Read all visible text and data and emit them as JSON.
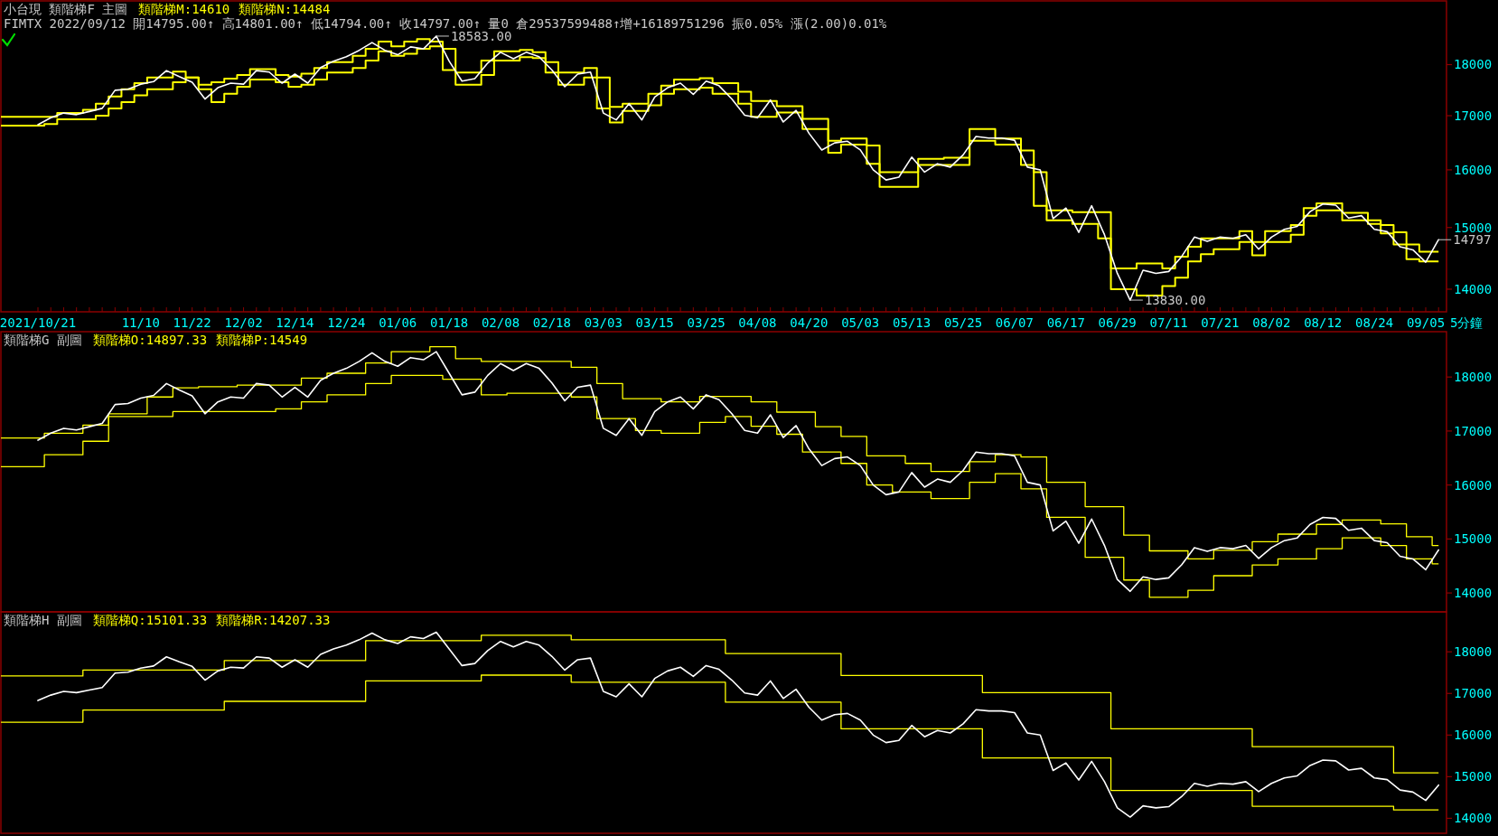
{
  "chart_data": [
    {
      "type": "line",
      "title": "小台現 類階梯F 主圖",
      "subtitle": "FIMTX 2022/09/12 開14795.00↑ 高14801.00↑ 低14794.00↑ 收14797.00↑ 量0 倉29537599488↑增+16189751296 振0.05% 漲(2.00)0.01%",
      "xlabel": "5分鐘",
      "log": true,
      "categories": [
        "2021/10/21",
        null,
        null,
        null,
        null,
        null,
        null,
        null,
        "11/10",
        null,
        null,
        null,
        "11/22",
        null,
        null,
        null,
        "12/02",
        null,
        null,
        null,
        "12/14",
        null,
        null,
        null,
        "12/24",
        null,
        null,
        null,
        "01/06",
        null,
        null,
        null,
        "01/18",
        null,
        null,
        null,
        "02/08",
        null,
        null,
        null,
        "02/18",
        null,
        null,
        null,
        "03/03",
        null,
        null,
        null,
        "03/15",
        null,
        null,
        null,
        "03/25",
        null,
        null,
        null,
        "04/08",
        null,
        null,
        null,
        "04/20",
        null,
        null,
        null,
        "05/03",
        null,
        null,
        null,
        "05/13",
        null,
        null,
        null,
        "05/25",
        null,
        null,
        null,
        "06/07",
        null,
        null,
        null,
        "06/17",
        null,
        null,
        null,
        "06/29",
        null,
        null,
        null,
        "07/11",
        null,
        null,
        null,
        "07/21",
        null,
        null,
        null,
        "08/02",
        null,
        null,
        null,
        "08/12",
        null,
        null,
        null,
        "08/24",
        null,
        null,
        null,
        "09/05",
        null
      ],
      "ylim": [
        13650,
        19330
      ],
      "yticks": [
        14000,
        15000,
        16000,
        17000,
        18000
      ],
      "series": [
        {
          "type": "step",
          "color": "#ffff00",
          "values": [
            16980,
            16980,
            17050,
            17050,
            17110,
            17230,
            17370,
            17510,
            17630,
            17740,
            17740,
            17860,
            17740,
            17600,
            17650,
            17720,
            17790,
            17910,
            17910,
            17790,
            17760,
            17820,
            17930,
            18050,
            18050,
            18180,
            18320,
            18470,
            18370,
            18470,
            18520,
            18470,
            18320,
            17840,
            17840,
            18080,
            18270,
            18270,
            18300,
            18250,
            18050,
            17840,
            17840,
            17930,
            17740,
            17170,
            17230,
            17230,
            17420,
            17580,
            17700,
            17700,
            17730,
            17630,
            17630,
            17460,
            17280,
            17280,
            17180,
            17180,
            16940,
            16940,
            16530,
            16570,
            16570,
            16440,
            15960,
            15960,
            15960,
            16200,
            16200,
            16220,
            16220,
            16750,
            16750,
            16570,
            16570,
            16350,
            15960,
            15290,
            15290,
            15260,
            15260,
            15260,
            14330,
            14330,
            14410,
            14410,
            14330,
            14520,
            14680,
            14820,
            14820,
            14820,
            14940,
            14760,
            14940,
            14940,
            15040,
            15330,
            15410,
            15410,
            15250,
            15250,
            15120,
            15040,
            14920,
            14720,
            14600,
            14600
          ]
        },
        {
          "type": "step",
          "color": "#ffff00",
          "values": [
            16810,
            16840,
            16930,
            16930,
            16930,
            17000,
            17140,
            17260,
            17390,
            17510,
            17510,
            17650,
            17740,
            17510,
            17260,
            17420,
            17560,
            17700,
            17700,
            17650,
            17560,
            17600,
            17700,
            17840,
            17840,
            17930,
            18080,
            18270,
            18180,
            18220,
            18320,
            18370,
            17890,
            17600,
            17600,
            17790,
            18080,
            18080,
            18150,
            18130,
            17840,
            17600,
            17600,
            17740,
            17140,
            16870,
            17090,
            17090,
            17200,
            17420,
            17510,
            17510,
            17540,
            17420,
            17420,
            17230,
            16980,
            16980,
            17060,
            17060,
            16750,
            16750,
            16310,
            16460,
            16460,
            16110,
            15700,
            15700,
            15700,
            16090,
            16090,
            16090,
            16090,
            16530,
            16530,
            16460,
            16460,
            16090,
            15370,
            15120,
            15120,
            15060,
            15060,
            14820,
            14000,
            14000,
            13900,
            13900,
            14050,
            14180,
            14440,
            14560,
            14640,
            14640,
            14760,
            14540,
            14760,
            14760,
            14880,
            15200,
            15290,
            15290,
            15120,
            15120,
            15060,
            14900,
            14720,
            14480,
            14440,
            14440
          ]
        },
        {
          "color": "#ffffff",
          "values": [
            16830,
            16960,
            17050,
            17020,
            17080,
            17140,
            17490,
            17510,
            17610,
            17660,
            17880,
            17760,
            17650,
            17320,
            17540,
            17630,
            17610,
            17880,
            17850,
            17630,
            17810,
            17630,
            17940,
            18070,
            18160,
            18290,
            18450,
            18290,
            18200,
            18360,
            18320,
            18583,
            18070,
            17670,
            17720,
            18030,
            18250,
            18120,
            18250,
            18160,
            17890,
            17560,
            17810,
            17850,
            17050,
            16920,
            17230,
            16920,
            17360,
            17540,
            17630,
            17410,
            17670,
            17580,
            17320,
            17010,
            16960,
            17300,
            16880,
            17100,
            16670,
            16360,
            16490,
            16520,
            16360,
            16000,
            15820,
            15870,
            16230,
            15960,
            16110,
            16050,
            16270,
            16610,
            16580,
            16580,
            16540,
            16050,
            16000,
            15150,
            15330,
            14920,
            15370,
            14880,
            14250,
            13830,
            14300,
            14250,
            14280,
            14520,
            14840,
            14770,
            14840,
            14820,
            14880,
            14640,
            14840,
            14970,
            15020,
            15270,
            15400,
            15380,
            15160,
            15200,
            14970,
            14930,
            14680,
            14630,
            14430,
            14797
          ],
          "value_labels": [
            null,
            null,
            null,
            null,
            null,
            null,
            null,
            null,
            null,
            null,
            null,
            null,
            null,
            null,
            null,
            null,
            null,
            null,
            null,
            null,
            null,
            null,
            null,
            null,
            null,
            null,
            null,
            null,
            null,
            null,
            null,
            "18583.00",
            null,
            null,
            null,
            null,
            null,
            null,
            null,
            null,
            null,
            null,
            null,
            null,
            null,
            null,
            null,
            null,
            null,
            null,
            null,
            null,
            null,
            null,
            null,
            null,
            null,
            null,
            null,
            null,
            null,
            null,
            null,
            null,
            null,
            null,
            null,
            null,
            null,
            null,
            null,
            null,
            null,
            null,
            null,
            null,
            null,
            null,
            null,
            null,
            null,
            null,
            null,
            null,
            null,
            "13830.00",
            null,
            null,
            null,
            null,
            null,
            null,
            null,
            null,
            null,
            null,
            null,
            null,
            null,
            null,
            null,
            null,
            null,
            null,
            null,
            null,
            null,
            null,
            null,
            "14797"
          ]
        }
      ],
      "annotations": [
        "類階梯M:14610",
        "類階梯N:14484"
      ]
    },
    {
      "type": "line",
      "title": "類階梯G 副圖",
      "tick_labels": "y",
      "categories": [
        null,
        null,
        null,
        null,
        null,
        null,
        null,
        null,
        null,
        null,
        null,
        null,
        null,
        null,
        null,
        null,
        null,
        null,
        null,
        null,
        null,
        null,
        null,
        null,
        null,
        null,
        null,
        null,
        null,
        null,
        null,
        null,
        null,
        null,
        null,
        null,
        null,
        null,
        null,
        null,
        null,
        null,
        null,
        null,
        null,
        null,
        null,
        null,
        null,
        null,
        null,
        null,
        null,
        null,
        null,
        null,
        null,
        null,
        null,
        null,
        null,
        null,
        null,
        null,
        null,
        null,
        null,
        null,
        null,
        null,
        null,
        null,
        null,
        null,
        null,
        null,
        null,
        null,
        null,
        null,
        null,
        null,
        null,
        null,
        null,
        null,
        null,
        null,
        null,
        null,
        null,
        null,
        null,
        null,
        null,
        null,
        null,
        null,
        null,
        null,
        null,
        null,
        null,
        null,
        null,
        null,
        null,
        null,
        null,
        null
      ],
      "ylim": [
        13650,
        18840
      ],
      "yticks": [
        14000,
        15000,
        16000,
        17000,
        18000
      ],
      "series": [
        {
          "type": "step",
          "color": "#ffff00",
          "values": [
            16870,
            16960,
            16960,
            16960,
            17110,
            17110,
            17320,
            17320,
            17320,
            17630,
            17630,
            17800,
            17800,
            17820,
            17820,
            17820,
            17850,
            17850,
            17850,
            17850,
            17850,
            17980,
            17980,
            18070,
            18070,
            18070,
            18260,
            18260,
            18470,
            18470,
            18470,
            18560,
            18560,
            18340,
            18340,
            18290,
            18290,
            18290,
            18290,
            18290,
            18290,
            18290,
            18180,
            18180,
            17880,
            17880,
            17600,
            17600,
            17600,
            17540,
            17540,
            17540,
            17640,
            17640,
            17640,
            17640,
            17540,
            17540,
            17350,
            17350,
            17350,
            17080,
            17080,
            16900,
            16900,
            16540,
            16540,
            16540,
            16400,
            16400,
            16250,
            16250,
            16250,
            16430,
            16430,
            16560,
            16560,
            16520,
            16520,
            16050,
            16050,
            16050,
            15600,
            15600,
            15600,
            15070,
            15070,
            14780,
            14780,
            14780,
            14630,
            14630,
            14790,
            14790,
            14790,
            14950,
            14950,
            15090,
            15090,
            15090,
            15270,
            15270,
            15350,
            15350,
            15350,
            15280,
            15280,
            15040,
            15040,
            14880
          ]
        },
        {
          "type": "step",
          "color": "#ffff00",
          "values": [
            16340,
            16560,
            16560,
            16560,
            16810,
            16810,
            17270,
            17270,
            17270,
            17270,
            17270,
            17360,
            17360,
            17360,
            17360,
            17360,
            17360,
            17360,
            17360,
            17410,
            17410,
            17540,
            17540,
            17670,
            17670,
            17670,
            17880,
            17880,
            18030,
            18030,
            18030,
            18030,
            17960,
            17960,
            17960,
            17670,
            17670,
            17700,
            17700,
            17700,
            17700,
            17700,
            17630,
            17630,
            17230,
            17230,
            17230,
            17010,
            17010,
            16960,
            16960,
            16960,
            17160,
            17160,
            17270,
            17270,
            17090,
            17090,
            16940,
            16940,
            16610,
            16610,
            16610,
            16400,
            16400,
            16000,
            16000,
            15870,
            15870,
            15870,
            15750,
            15750,
            15750,
            16050,
            16050,
            16210,
            16210,
            15930,
            15930,
            15400,
            15400,
            15400,
            14660,
            14660,
            14660,
            14240,
            14240,
            13920,
            13920,
            13920,
            14050,
            14050,
            14320,
            14320,
            14320,
            14520,
            14520,
            14630,
            14630,
            14630,
            14820,
            14820,
            15020,
            15020,
            15020,
            14880,
            14880,
            14630,
            14630,
            14540
          ]
        },
        {
          "color": "#ffffff",
          "values": [
            16830,
            16960,
            17050,
            17020,
            17080,
            17140,
            17490,
            17510,
            17610,
            17660,
            17880,
            17760,
            17650,
            17320,
            17540,
            17630,
            17610,
            17880,
            17850,
            17630,
            17810,
            17630,
            17940,
            18070,
            18160,
            18290,
            18450,
            18290,
            18200,
            18360,
            18320,
            18470,
            18070,
            17670,
            17720,
            18030,
            18250,
            18120,
            18250,
            18160,
            17890,
            17560,
            17810,
            17850,
            17050,
            16920,
            17230,
            16920,
            17360,
            17540,
            17630,
            17410,
            17670,
            17580,
            17320,
            17010,
            16960,
            17300,
            16880,
            17100,
            16670,
            16360,
            16490,
            16520,
            16360,
            16000,
            15820,
            15870,
            16230,
            15960,
            16110,
            16050,
            16270,
            16610,
            16580,
            16580,
            16540,
            16050,
            16000,
            15150,
            15330,
            14920,
            15370,
            14880,
            14250,
            14030,
            14300,
            14250,
            14280,
            14520,
            14840,
            14770,
            14840,
            14820,
            14880,
            14640,
            14840,
            14970,
            15020,
            15270,
            15400,
            15380,
            15160,
            15200,
            14970,
            14930,
            14680,
            14630,
            14430,
            14797
          ]
        }
      ],
      "annotations": [
        "類階梯O:14897.33",
        "類階梯P:14549"
      ]
    },
    {
      "type": "line",
      "title": "類階梯H 副圖",
      "tick_labels": "y",
      "categories": [
        null,
        null,
        null,
        null,
        null,
        null,
        null,
        null,
        null,
        null,
        null,
        null,
        null,
        null,
        null,
        null,
        null,
        null,
        null,
        null,
        null,
        null,
        null,
        null,
        null,
        null,
        null,
        null,
        null,
        null,
        null,
        null,
        null,
        null,
        null,
        null,
        null,
        null,
        null,
        null,
        null,
        null,
        null,
        null,
        null,
        null,
        null,
        null,
        null,
        null,
        null,
        null,
        null,
        null,
        null,
        null,
        null,
        null,
        null,
        null,
        null,
        null,
        null,
        null,
        null,
        null,
        null,
        null,
        null,
        null,
        null,
        null,
        null,
        null,
        null,
        null,
        null,
        null,
        null,
        null,
        null,
        null,
        null,
        null,
        null,
        null,
        null,
        null,
        null,
        null,
        null,
        null,
        null,
        null,
        null,
        null,
        null,
        null,
        null,
        null,
        null,
        null,
        null,
        null,
        null,
        null,
        null,
        null,
        null,
        null
      ],
      "ylim": [
        13640,
        18960
      ],
      "yticks": [
        14000,
        15000,
        16000,
        17000,
        18000
      ],
      "series": [
        {
          "type": "step",
          "color": "#ffff00",
          "values": [
            17420,
            17420,
            17420,
            17420,
            17560,
            17560,
            17560,
            17560,
            17560,
            17560,
            17560,
            17560,
            17560,
            17560,
            17560,
            17790,
            17790,
            17790,
            17790,
            17790,
            17790,
            17790,
            17790,
            17790,
            17790,
            17790,
            18270,
            18270,
            18270,
            18270,
            18270,
            18270,
            18270,
            18270,
            18270,
            18400,
            18400,
            18400,
            18400,
            18400,
            18400,
            18400,
            18290,
            18290,
            18290,
            18290,
            18290,
            18290,
            18290,
            18290,
            18290,
            18290,
            18290,
            18290,
            17960,
            17960,
            17960,
            17960,
            17960,
            17960,
            17960,
            17960,
            17960,
            17430,
            17430,
            17430,
            17430,
            17430,
            17430,
            17430,
            17430,
            17430,
            17430,
            17430,
            17020,
            17020,
            17020,
            17020,
            17020,
            17020,
            17020,
            17020,
            17020,
            17020,
            16150,
            16150,
            16150,
            16150,
            16150,
            16150,
            16150,
            16150,
            16150,
            16150,
            16150,
            15720,
            15720,
            15720,
            15720,
            15720,
            15720,
            15720,
            15720,
            15720,
            15720,
            15720,
            15090,
            15090,
            15090,
            15090
          ]
        },
        {
          "type": "step",
          "color": "#ffff00",
          "values": [
            16310,
            16310,
            16310,
            16310,
            16600,
            16600,
            16600,
            16600,
            16600,
            16600,
            16600,
            16600,
            16600,
            16600,
            16600,
            16810,
            16810,
            16810,
            16810,
            16810,
            16810,
            16810,
            16810,
            16810,
            16810,
            16810,
            17300,
            17300,
            17300,
            17300,
            17300,
            17300,
            17300,
            17300,
            17300,
            17440,
            17440,
            17440,
            17440,
            17440,
            17440,
            17440,
            17270,
            17270,
            17270,
            17270,
            17270,
            17270,
            17270,
            17270,
            17270,
            17270,
            17270,
            17270,
            16790,
            16790,
            16790,
            16790,
            16790,
            16790,
            16790,
            16790,
            16790,
            16150,
            16150,
            16150,
            16150,
            16150,
            16150,
            16150,
            16150,
            16150,
            16150,
            16150,
            15450,
            15450,
            15450,
            15450,
            15450,
            15450,
            15450,
            15450,
            15450,
            15450,
            14670,
            14670,
            14670,
            14670,
            14670,
            14670,
            14670,
            14670,
            14670,
            14670,
            14670,
            14290,
            14290,
            14290,
            14290,
            14290,
            14290,
            14290,
            14290,
            14290,
            14290,
            14290,
            14200,
            14200,
            14200,
            14200
          ]
        },
        {
          "color": "#ffffff",
          "values": [
            16830,
            16960,
            17050,
            17020,
            17080,
            17140,
            17490,
            17510,
            17610,
            17660,
            17880,
            17760,
            17650,
            17320,
            17540,
            17630,
            17610,
            17880,
            17850,
            17630,
            17810,
            17630,
            17940,
            18070,
            18160,
            18290,
            18450,
            18290,
            18200,
            18360,
            18320,
            18470,
            18070,
            17670,
            17720,
            18030,
            18250,
            18120,
            18250,
            18160,
            17890,
            17560,
            17810,
            17850,
            17050,
            16920,
            17230,
            16920,
            17360,
            17540,
            17630,
            17410,
            17670,
            17580,
            17320,
            17010,
            16960,
            17300,
            16880,
            17100,
            16670,
            16360,
            16490,
            16520,
            16360,
            16000,
            15820,
            15870,
            16230,
            15960,
            16110,
            16050,
            16270,
            16610,
            16580,
            16580,
            16540,
            16050,
            16000,
            15150,
            15330,
            14920,
            15370,
            14880,
            14250,
            14030,
            14300,
            14250,
            14280,
            14520,
            14840,
            14770,
            14840,
            14820,
            14880,
            14640,
            14840,
            14970,
            15020,
            15270,
            15400,
            15380,
            15160,
            15200,
            14970,
            14930,
            14680,
            14630,
            14430,
            14797
          ]
        }
      ],
      "annotations": [
        "類階梯Q:15101.33",
        "類階梯R:14207.33"
      ]
    }
  ]
}
